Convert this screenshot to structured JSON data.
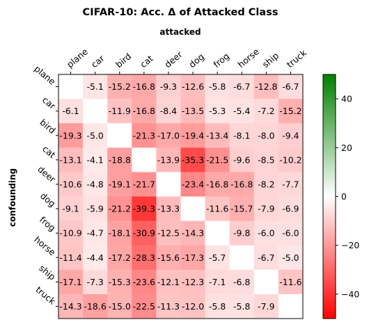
{
  "chart_data": {
    "type": "heatmap",
    "title": "CIFAR-10: Acc. Δ of Attacked Class",
    "xlabel": "attacked",
    "ylabel": "confounding",
    "x_categories": [
      "plane",
      "car",
      "bird",
      "cat",
      "deer",
      "dog",
      "frog",
      "horse",
      "ship",
      "truck"
    ],
    "y_categories": [
      "plane",
      "car",
      "bird",
      "cat",
      "deer",
      "dog",
      "frog",
      "horse",
      "ship",
      "truck"
    ],
    "values": [
      [
        null,
        -5.1,
        -15.2,
        -16.8,
        -9.3,
        -12.6,
        -5.8,
        -6.7,
        -12.8,
        -6.7
      ],
      [
        -6.1,
        null,
        -11.9,
        -16.8,
        -8.4,
        -13.5,
        -5.3,
        -5.4,
        -7.2,
        -15.2
      ],
      [
        -19.3,
        -5.0,
        null,
        -21.3,
        -17.0,
        -19.4,
        -13.4,
        -8.1,
        -8.0,
        -9.4
      ],
      [
        -13.1,
        -4.1,
        -18.8,
        null,
        -13.9,
        -35.3,
        -21.5,
        -9.6,
        -8.5,
        -10.2
      ],
      [
        -10.6,
        -4.8,
        -19.1,
        -21.7,
        null,
        -23.4,
        -16.8,
        -16.8,
        -8.2,
        -7.7
      ],
      [
        -9.1,
        -5.9,
        -21.2,
        -39.3,
        -13.3,
        null,
        -11.6,
        -15.7,
        -7.9,
        -6.9
      ],
      [
        -10.9,
        -4.7,
        -18.1,
        -30.9,
        -12.5,
        -14.3,
        null,
        -9.8,
        -6.0,
        -6.0
      ],
      [
        -11.4,
        -4.4,
        -17.2,
        -28.3,
        -15.6,
        -17.3,
        -5.7,
        null,
        -6.7,
        -5.0
      ],
      [
        -17.1,
        -7.3,
        -15.3,
        -23.6,
        -12.1,
        -12.3,
        -7.1,
        -6.8,
        null,
        -11.6
      ],
      [
        -14.3,
        -18.6,
        -15.0,
        -22.5,
        -11.3,
        -12.0,
        -5.8,
        -5.8,
        -7.9,
        null
      ]
    ],
    "colorbar": {
      "range": [
        -50,
        50
      ],
      "ticks": [
        -40,
        -20,
        0,
        20,
        40
      ],
      "colors": {
        "min": "#ff0000",
        "mid": "#ffffff",
        "max": "#008000"
      }
    },
    "grid": false
  }
}
